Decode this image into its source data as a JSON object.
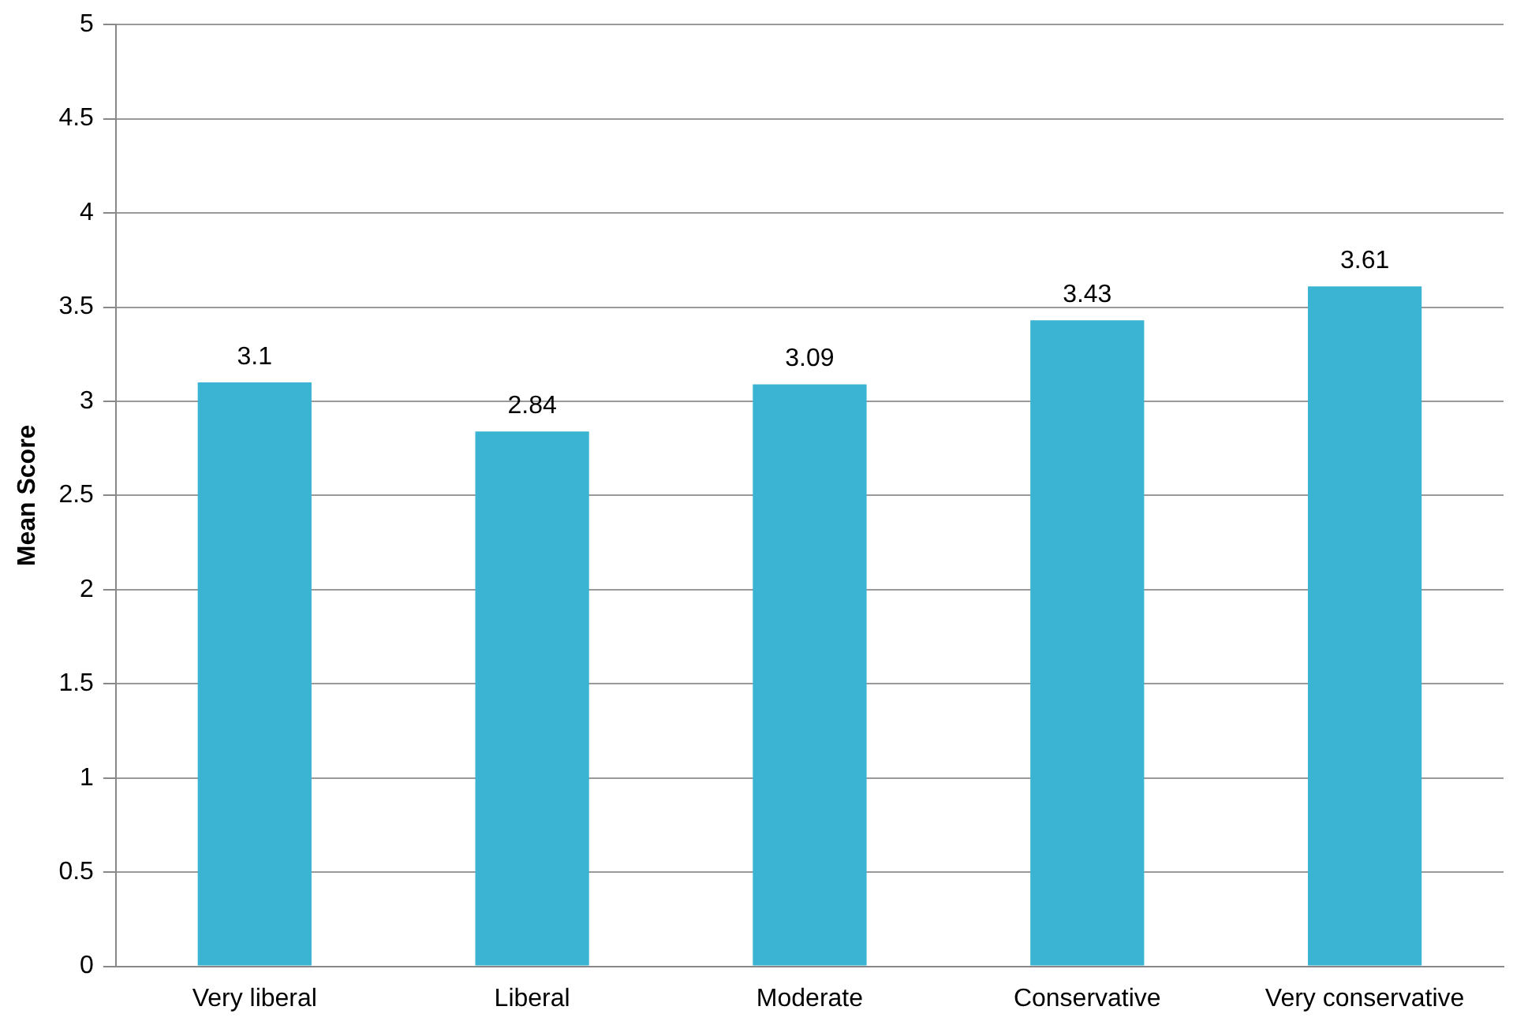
{
  "chart_data": {
    "type": "bar",
    "ylabel": "Mean Score",
    "categories": [
      "Very liberal",
      "Liberal",
      "Moderate",
      "Conservative",
      "Very conservative"
    ],
    "values": [
      3.1,
      2.84,
      3.09,
      3.43,
      3.61
    ],
    "color": "#3ab4d2",
    "ylim": [
      0,
      5
    ],
    "yticks": [
      0,
      0.5,
      1,
      1.5,
      2,
      2.5,
      3,
      3.5,
      4,
      4.5,
      5
    ],
    "grid": "y",
    "legend": false,
    "data_labels": true
  }
}
